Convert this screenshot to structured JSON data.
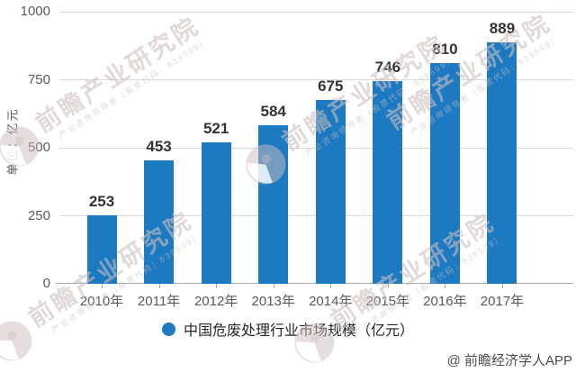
{
  "chart_data": {
    "type": "bar",
    "title": "",
    "categories": [
      "2010年",
      "2011年",
      "2012年",
      "2013年",
      "2014年",
      "2015年",
      "2016年",
      "2017年"
    ],
    "values": [
      253,
      453,
      521,
      584,
      675,
      746,
      810,
      889
    ],
    "series_label": "中国危废处理行业市场规模（亿元）",
    "xlabel": "",
    "ylabel": "单位：亿元",
    "ylim": [
      0,
      1000
    ],
    "yticks": [
      0,
      250,
      500,
      750,
      1000
    ],
    "grid": "horizontal",
    "legend_position": "bottom",
    "bar_color": "#1b7ac1"
  },
  "legend": {
    "label": "中国危废处理行业市场规模（亿元）"
  },
  "watermark": {
    "brand": "前瞻产业研究院",
    "tagline": "产业咨询领导者（股票代码：839599）"
  },
  "attribution": {
    "text": "@ 前瞻经济学人APP"
  }
}
